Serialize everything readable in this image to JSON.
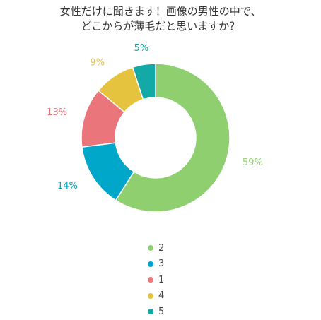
{
  "chart_data": {
    "type": "pie",
    "title_lines": [
      "女性だけに聞きます！画像の男性の中で、",
      "どこからが薄毛だと思いますか？"
    ],
    "donut": true,
    "slices": [
      {
        "category": "2",
        "value": 59,
        "label": "59%",
        "color": "#8fcf6f"
      },
      {
        "category": "3",
        "value": 14,
        "label": "14%",
        "color": "#00a7c8"
      },
      {
        "category": "1",
        "value": 13,
        "label": "13%",
        "color": "#ea767b"
      },
      {
        "category": "4",
        "value": 9,
        "label": "9%",
        "color": "#e6c33f"
      },
      {
        "category": "5",
        "value": 5,
        "label": "5%",
        "color": "#13a9a6"
      }
    ],
    "legend_position": "bottom"
  }
}
